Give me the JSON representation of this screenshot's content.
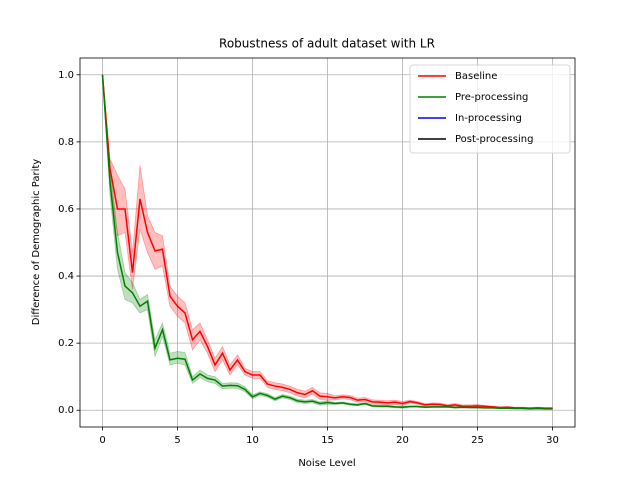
{
  "chart_data": {
    "type": "line",
    "title": "Robustness of adult dataset with LR",
    "xlabel": "Noise Level",
    "ylabel": "Difference of Demographic Parity",
    "xlim": [
      -1.5,
      31.5
    ],
    "ylim": [
      -0.05,
      1.05
    ],
    "xticks": [
      0,
      5,
      10,
      15,
      20,
      25,
      30
    ],
    "yticks": [
      {
        "value": 0,
        "label": "0.0"
      },
      {
        "value": 0.2,
        "label": "0.2"
      },
      {
        "value": 0.4,
        "label": "0.4"
      },
      {
        "value": 0.6,
        "label": "0.6"
      },
      {
        "value": 0.8,
        "label": "0.8"
      },
      {
        "value": 1,
        "label": "1.0"
      }
    ],
    "grid": true,
    "legend": "upper right",
    "x": [
      0,
      0.5,
      1,
      1.5,
      2,
      2.5,
      3,
      3.5,
      4,
      4.5,
      5,
      5.5,
      6,
      6.5,
      7,
      7.5,
      8,
      8.5,
      9,
      9.5,
      10,
      10.5,
      11,
      11.5,
      12,
      12.5,
      13,
      13.5,
      14,
      14.5,
      15,
      15.5,
      16,
      16.5,
      17,
      17.5,
      18,
      18.5,
      19,
      19.5,
      20,
      20.5,
      21,
      21.5,
      22,
      22.5,
      23,
      23.5,
      24,
      24.5,
      25,
      25.5,
      26,
      26.5,
      27,
      27.5,
      28,
      28.5,
      29,
      29.5,
      30
    ],
    "series": [
      {
        "name": "Baseline",
        "color": "#ff0000",
        "values": [
          1.0,
          0.72,
          0.6,
          0.6,
          0.41,
          0.63,
          0.53,
          0.475,
          0.48,
          0.34,
          0.31,
          0.29,
          0.21,
          0.235,
          0.19,
          0.135,
          0.17,
          0.12,
          0.15,
          0.115,
          0.105,
          0.105,
          0.078,
          0.072,
          0.068,
          0.062,
          0.052,
          0.047,
          0.058,
          0.042,
          0.04,
          0.037,
          0.04,
          0.038,
          0.03,
          0.032,
          0.025,
          0.024,
          0.022,
          0.024,
          0.02,
          0.026,
          0.022,
          0.016,
          0.018,
          0.017,
          0.013,
          0.016,
          0.012,
          0.012,
          0.013,
          0.012,
          0.01,
          0.008,
          0.009,
          0.007,
          0.007,
          0.006,
          0.007,
          0.006,
          0.006
        ],
        "upper": [
          1.0,
          0.75,
          0.7,
          0.66,
          0.47,
          0.73,
          0.58,
          0.53,
          0.52,
          0.37,
          0.34,
          0.32,
          0.24,
          0.26,
          0.21,
          0.155,
          0.19,
          0.135,
          0.165,
          0.125,
          0.115,
          0.115,
          0.088,
          0.082,
          0.078,
          0.072,
          0.062,
          0.057,
          0.068,
          0.052,
          0.05,
          0.043,
          0.046,
          0.044,
          0.036,
          0.038,
          0.031,
          0.03,
          0.028,
          0.03,
          0.026,
          0.03,
          0.026,
          0.02,
          0.022,
          0.021,
          0.017,
          0.02,
          0.016,
          0.016,
          0.017,
          0.014,
          0.012,
          0.01,
          0.011,
          0.009,
          0.009,
          0.008,
          0.009,
          0.008,
          0.008
        ],
        "lower": [
          1.0,
          0.68,
          0.52,
          0.53,
          0.36,
          0.54,
          0.47,
          0.42,
          0.43,
          0.31,
          0.28,
          0.26,
          0.18,
          0.21,
          0.17,
          0.115,
          0.15,
          0.105,
          0.135,
          0.105,
          0.095,
          0.095,
          0.068,
          0.062,
          0.058,
          0.052,
          0.042,
          0.037,
          0.048,
          0.032,
          0.03,
          0.031,
          0.034,
          0.032,
          0.024,
          0.026,
          0.019,
          0.018,
          0.016,
          0.018,
          0.014,
          0.022,
          0.018,
          0.012,
          0.014,
          0.013,
          0.009,
          0.012,
          0.008,
          0.008,
          0.009,
          0.01,
          0.008,
          0.006,
          0.007,
          0.005,
          0.005,
          0.004,
          0.005,
          0.004,
          0.004
        ]
      },
      {
        "name": "Pre-processing",
        "color": "#008000",
        "values": [
          1.0,
          0.68,
          0.47,
          0.37,
          0.35,
          0.31,
          0.325,
          0.185,
          0.24,
          0.15,
          0.155,
          0.152,
          0.09,
          0.108,
          0.095,
          0.09,
          0.072,
          0.074,
          0.073,
          0.062,
          0.04,
          0.05,
          0.044,
          0.033,
          0.042,
          0.037,
          0.028,
          0.025,
          0.027,
          0.02,
          0.023,
          0.02,
          0.022,
          0.018,
          0.016,
          0.02,
          0.013,
          0.012,
          0.012,
          0.01,
          0.009,
          0.011,
          0.011,
          0.009,
          0.01,
          0.01,
          0.01,
          0.008,
          0.009,
          0.008,
          0.008,
          0.007,
          0.007,
          0.006,
          0.006,
          0.005,
          0.005,
          0.004,
          0.005,
          0.004,
          0.004
        ],
        "upper": [
          1.0,
          0.72,
          0.53,
          0.41,
          0.38,
          0.33,
          0.345,
          0.21,
          0.26,
          0.17,
          0.175,
          0.172,
          0.1,
          0.12,
          0.105,
          0.1,
          0.08,
          0.082,
          0.081,
          0.07,
          0.046,
          0.055,
          0.049,
          0.038,
          0.047,
          0.042,
          0.033,
          0.03,
          0.032,
          0.025,
          0.028,
          0.023,
          0.025,
          0.021,
          0.019,
          0.023,
          0.016,
          0.015,
          0.015,
          0.013,
          0.012,
          0.013,
          0.013,
          0.011,
          0.012,
          0.012,
          0.012,
          0.01,
          0.011,
          0.01,
          0.01,
          0.008,
          0.008,
          0.007,
          0.007,
          0.006,
          0.006,
          0.005,
          0.006,
          0.005,
          0.005
        ],
        "lower": [
          1.0,
          0.64,
          0.42,
          0.33,
          0.32,
          0.29,
          0.3,
          0.16,
          0.22,
          0.135,
          0.14,
          0.135,
          0.08,
          0.097,
          0.085,
          0.08,
          0.064,
          0.066,
          0.065,
          0.055,
          0.034,
          0.045,
          0.039,
          0.028,
          0.037,
          0.032,
          0.023,
          0.02,
          0.022,
          0.015,
          0.018,
          0.017,
          0.019,
          0.015,
          0.013,
          0.017,
          0.01,
          0.009,
          0.009,
          0.007,
          0.006,
          0.009,
          0.009,
          0.007,
          0.008,
          0.008,
          0.008,
          0.006,
          0.007,
          0.006,
          0.006,
          0.006,
          0.006,
          0.005,
          0.005,
          0.004,
          0.004,
          0.003,
          0.004,
          0.003,
          0.003
        ]
      },
      {
        "name": "In-processing",
        "color": "#0000ff",
        "values": [
          null,
          null,
          null,
          null,
          null,
          null,
          null,
          null,
          null,
          null,
          null,
          null,
          null,
          null,
          null,
          null,
          null,
          null,
          null,
          null,
          null,
          null,
          null,
          null,
          null,
          null,
          null,
          null,
          null,
          null,
          null,
          null,
          null,
          null,
          null,
          null,
          null,
          null,
          null,
          null,
          null,
          null,
          null,
          null,
          null,
          null,
          null,
          null,
          null,
          null,
          null,
          null,
          null,
          null,
          null,
          null,
          null,
          null,
          null,
          null,
          null
        ]
      },
      {
        "name": "Post-processing",
        "color": "#000000",
        "values": [
          null,
          null,
          null,
          null,
          null,
          null,
          null,
          null,
          null,
          null,
          null,
          null,
          null,
          null,
          null,
          null,
          null,
          null,
          null,
          null,
          null,
          null,
          null,
          null,
          null,
          null,
          null,
          null,
          null,
          null,
          null,
          null,
          null,
          null,
          null,
          null,
          null,
          null,
          null,
          null,
          null,
          null,
          null,
          null,
          null,
          null,
          null,
          null,
          null,
          null,
          null,
          null,
          null,
          null,
          null,
          null,
          null,
          null,
          null,
          null,
          null
        ]
      }
    ]
  }
}
